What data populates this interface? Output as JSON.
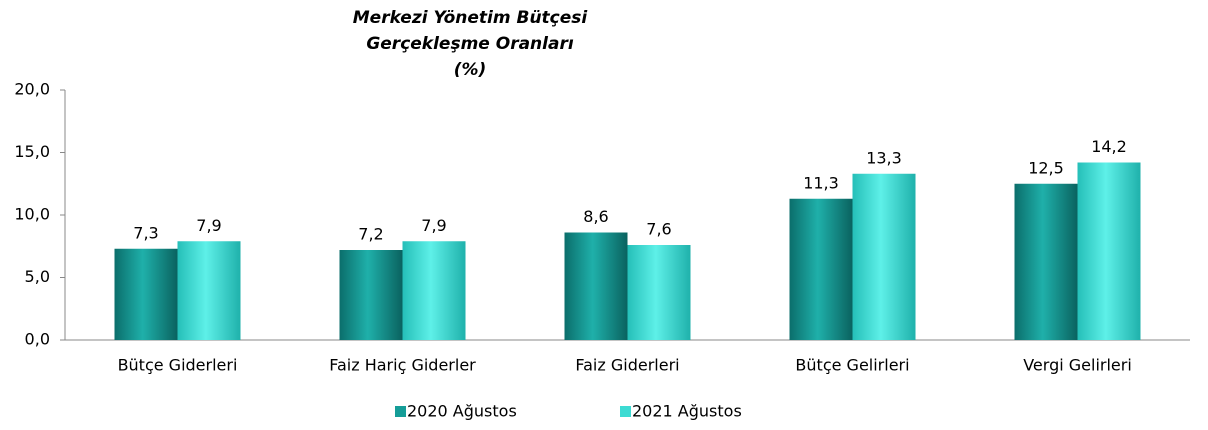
{
  "chart_data": {
    "type": "bar",
    "title": [
      "Merkezi Yönetim Bütçesi",
      "Gerçekleşme Oranları",
      "(%)"
    ],
    "categories": [
      "Bütçe Giderleri",
      "Faiz Hariç Giderler",
      "Faiz Giderleri",
      "Bütçe Gelirleri",
      "Vergi Gelirleri"
    ],
    "series": [
      {
        "name": "2020  Ağustos",
        "color": "#159d98",
        "values": [
          7.3,
          7.2,
          8.6,
          11.3,
          12.5
        ],
        "value_labels": [
          "7,3",
          "7,2",
          "8,6",
          "11,3",
          "12,5"
        ]
      },
      {
        "name": "2021  Ağustos",
        "color": "#3ddbd3",
        "values": [
          7.9,
          7.9,
          7.6,
          13.3,
          14.2
        ],
        "value_labels": [
          "7,9",
          "7,9",
          "7,6",
          "13,3",
          "14,2"
        ]
      }
    ],
    "ylim": [
      0,
      20
    ],
    "yticks": [
      {
        "value": 0,
        "label": "0,0"
      },
      {
        "value": 5,
        "label": "5,0"
      },
      {
        "value": 10,
        "label": "10,0"
      },
      {
        "value": 15,
        "label": "15,0"
      },
      {
        "value": 20,
        "label": "20,0"
      }
    ],
    "grid": false,
    "legend": "bottom"
  }
}
